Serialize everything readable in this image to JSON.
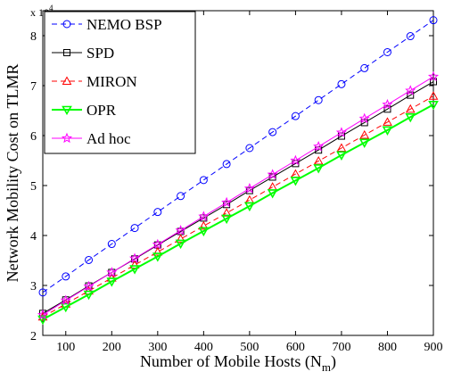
{
  "chart_data": {
    "type": "line",
    "title": "",
    "xlabel": "Number of Mobile Hosts (N",
    "xlabel_sub": "m",
    "xlabel_close": ")",
    "ylabel": "Network Mobility Cost on TLMR",
    "y_multiplier": "x 10",
    "y_multiplier_exp": "4",
    "xlim": [
      50,
      900
    ],
    "ylim": [
      2,
      8.5
    ],
    "xticks": [
      100,
      200,
      300,
      400,
      500,
      600,
      700,
      800,
      900
    ],
    "yticks": [
      2,
      3,
      4,
      5,
      6,
      7,
      8
    ],
    "grid": false,
    "legend_position": "top-left",
    "x": [
      50,
      100,
      150,
      200,
      250,
      300,
      350,
      400,
      450,
      500,
      550,
      600,
      650,
      700,
      750,
      800,
      850,
      900
    ],
    "series": [
      {
        "name": "NEMO BSP",
        "color": "#0000ff",
        "marker": "circle",
        "dash": "dashed",
        "values": [
          2.86,
          3.18,
          3.51,
          3.83,
          4.15,
          4.47,
          4.79,
          5.11,
          5.43,
          5.75,
          6.07,
          6.39,
          6.71,
          7.03,
          7.35,
          7.67,
          7.99,
          8.31
        ]
      },
      {
        "name": "SPD",
        "color": "#000000",
        "marker": "square",
        "dash": "solid",
        "values": [
          2.44,
          2.71,
          2.99,
          3.26,
          3.53,
          3.81,
          4.08,
          4.35,
          4.62,
          4.9,
          5.17,
          5.44,
          5.71,
          5.99,
          6.26,
          6.53,
          6.81,
          7.08
        ]
      },
      {
        "name": "MIRON",
        "color": "#ff0000",
        "marker": "triangle-up",
        "dash": "dashed",
        "values": [
          2.37,
          2.63,
          2.89,
          3.15,
          3.41,
          3.67,
          3.93,
          4.19,
          4.45,
          4.71,
          4.97,
          5.23,
          5.49,
          5.75,
          6.01,
          6.27,
          6.53,
          6.79
        ]
      },
      {
        "name": "OPR",
        "color": "#00ff00",
        "marker": "triangle-down",
        "dash": "solid",
        "values": [
          2.32,
          2.57,
          2.82,
          3.08,
          3.33,
          3.58,
          3.84,
          4.09,
          4.34,
          4.59,
          4.85,
          5.1,
          5.35,
          5.61,
          5.86,
          6.11,
          6.37,
          6.62
        ]
      },
      {
        "name": "Ad hoc",
        "color": "#ff00ff",
        "marker": "star",
        "dash": "solid",
        "values": [
          2.41,
          2.7,
          2.98,
          3.26,
          3.54,
          3.82,
          4.1,
          4.38,
          4.66,
          4.94,
          5.22,
          5.5,
          5.78,
          6.06,
          6.34,
          6.62,
          6.9,
          7.18
        ]
      }
    ]
  }
}
